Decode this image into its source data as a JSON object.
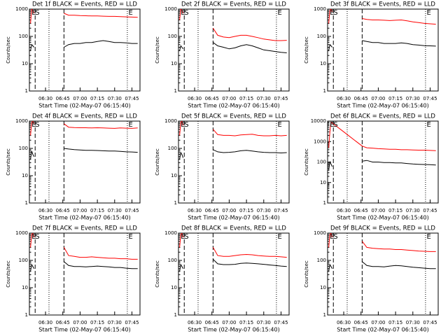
{
  "chart_data": [
    {
      "type": "line",
      "title": "Det 1f BLACK = Events, RED = LLD",
      "xlabel": "Start Time (02-May-07 06:15:40)",
      "ylabel": "Counts/sec",
      "yscale": "log",
      "xlim": [
        376,
        472
      ],
      "ylim": [
        1,
        1000
      ],
      "yticks": [
        1,
        10,
        100,
        1000
      ],
      "xticks": [
        {
          "value": 390,
          "label": "06:30"
        },
        {
          "value": 405,
          "label": "06:45"
        },
        {
          "value": 420,
          "label": "07:00"
        },
        {
          "value": 435,
          "label": "07:15"
        },
        {
          "value": 450,
          "label": "07:30"
        },
        {
          "value": 465,
          "label": "07:45"
        }
      ],
      "annotations": [
        "E",
        "S",
        "E"
      ],
      "dashed_lines": [
        381,
        406
      ],
      "dotted_lines": [
        393,
        461
      ],
      "x": [
        377,
        378,
        379,
        380,
        390,
        406,
        410,
        415,
        420,
        425,
        430,
        435,
        440,
        445,
        450,
        455,
        460,
        465,
        470
      ],
      "series": [
        {
          "color": "#ff0000",
          "values": [
            300,
            1000,
            900,
            700,
            null,
            700,
            600,
            600,
            580,
            570,
            560,
            560,
            550,
            540,
            540,
            530,
            520,
            510,
            500
          ]
        },
        {
          "color": "#000000",
          "values": [
            30,
            50,
            45,
            40,
            null,
            40,
            50,
            55,
            55,
            60,
            60,
            65,
            70,
            65,
            60,
            60,
            58,
            55,
            55
          ]
        }
      ]
    },
    {
      "type": "line",
      "title": "Det 2f BLACK = Events, RED = LLD",
      "xlabel": "Start Time (02-May-07 06:15:40)",
      "ylabel": "Counts/sec",
      "yscale": "log",
      "xlim": [
        376,
        472
      ],
      "ylim": [
        1,
        1000
      ],
      "yticks": [
        1,
        10,
        100,
        1000
      ],
      "xticks": [
        {
          "value": 390,
          "label": "06:30"
        },
        {
          "value": 405,
          "label": "06:45"
        },
        {
          "value": 420,
          "label": "07:00"
        },
        {
          "value": 435,
          "label": "07:15"
        },
        {
          "value": 450,
          "label": "07:30"
        },
        {
          "value": 465,
          "label": "07:45"
        }
      ],
      "annotations": [
        "E",
        "S",
        "E"
      ],
      "dashed_lines": [
        381,
        406
      ],
      "dotted_lines": [
        393,
        461
      ],
      "x": [
        377,
        378,
        379,
        380,
        390,
        406,
        410,
        415,
        420,
        425,
        430,
        435,
        440,
        445,
        450,
        455,
        460,
        465,
        470
      ],
      "series": [
        {
          "color": "#ff0000",
          "values": [
            400,
            1000,
            900,
            700,
            null,
            200,
            110,
            95,
            90,
            100,
            110,
            110,
            100,
            90,
            80,
            75,
            70,
            70,
            72
          ]
        },
        {
          "color": "#000000",
          "values": [
            30,
            45,
            40,
            35,
            null,
            60,
            45,
            40,
            35,
            38,
            45,
            50,
            45,
            38,
            32,
            30,
            28,
            26,
            25
          ]
        }
      ]
    },
    {
      "type": "line",
      "title": "Det 3f BLACK = Events, RED = LLD",
      "xlabel": "Start Time (02-May-07 06:15:40)",
      "ylabel": "Counts/sec",
      "yscale": "log",
      "xlim": [
        376,
        472
      ],
      "ylim": [
        1,
        1000
      ],
      "yticks": [
        1,
        10,
        100,
        1000
      ],
      "xticks": [
        {
          "value": 390,
          "label": "06:30"
        },
        {
          "value": 405,
          "label": "06:45"
        },
        {
          "value": 420,
          "label": "07:00"
        },
        {
          "value": 435,
          "label": "07:15"
        },
        {
          "value": 450,
          "label": "07:30"
        },
        {
          "value": 465,
          "label": "07:45"
        }
      ],
      "annotations": [
        "E",
        "S",
        "E"
      ],
      "dashed_lines": [
        381,
        406
      ],
      "dotted_lines": [
        393,
        461
      ],
      "x": [
        377,
        378,
        379,
        380,
        390,
        406,
        410,
        415,
        420,
        425,
        430,
        435,
        440,
        445,
        450,
        455,
        460,
        465,
        470
      ],
      "series": [
        {
          "color": "#ff0000",
          "values": [
            300,
            900,
            1000,
            800,
            null,
            450,
            420,
            400,
            400,
            390,
            380,
            390,
            400,
            370,
            340,
            320,
            300,
            290,
            280
          ]
        },
        {
          "color": "#000000",
          "values": [
            30,
            50,
            45,
            40,
            null,
            70,
            65,
            60,
            60,
            55,
            55,
            55,
            58,
            55,
            50,
            48,
            46,
            45,
            44
          ]
        }
      ]
    },
    {
      "type": "line",
      "title": "Det 4f BLACK = Events, RED = LLD",
      "xlabel": "Start Time (02-May-07 06:15:40)",
      "ylabel": "Counts/sec",
      "yscale": "log",
      "xlim": [
        376,
        472
      ],
      "ylim": [
        1,
        1000
      ],
      "yticks": [
        1,
        10,
        100,
        1000
      ],
      "xticks": [
        {
          "value": 390,
          "label": "06:30"
        },
        {
          "value": 405,
          "label": "06:45"
        },
        {
          "value": 420,
          "label": "07:00"
        },
        {
          "value": 435,
          "label": "07:15"
        },
        {
          "value": 450,
          "label": "07:30"
        },
        {
          "value": 465,
          "label": "07:45"
        }
      ],
      "annotations": [
        "E",
        "S",
        "E"
      ],
      "dashed_lines": [
        381,
        406
      ],
      "dotted_lines": [
        393,
        461
      ],
      "x": [
        377,
        378,
        379,
        380,
        390,
        406,
        410,
        415,
        420,
        425,
        430,
        435,
        440,
        445,
        450,
        455,
        460,
        465,
        470
      ],
      "series": [
        {
          "color": "#ff0000",
          "values": [
            300,
            900,
            1000,
            800,
            null,
            800,
            600,
            580,
            570,
            570,
            560,
            570,
            560,
            550,
            540,
            560,
            550,
            540,
            560
          ]
        },
        {
          "color": "#000000",
          "values": [
            40,
            80,
            60,
            50,
            null,
            100,
            95,
            90,
            88,
            85,
            85,
            84,
            82,
            80,
            80,
            78,
            75,
            74,
            72
          ]
        }
      ]
    },
    {
      "type": "line",
      "title": "Det 5f BLACK = Events, RED = LLD",
      "xlabel": "Start Time (02-May-07 06:15:40)",
      "ylabel": "Counts/sec",
      "yscale": "log",
      "xlim": [
        376,
        472
      ],
      "ylim": [
        1,
        1000
      ],
      "yticks": [
        1,
        10,
        100,
        1000
      ],
      "xticks": [
        {
          "value": 390,
          "label": "06:30"
        },
        {
          "value": 405,
          "label": "06:45"
        },
        {
          "value": 420,
          "label": "07:00"
        },
        {
          "value": 435,
          "label": "07:15"
        },
        {
          "value": 450,
          "label": "07:30"
        },
        {
          "value": 465,
          "label": "07:45"
        }
      ],
      "annotations": [
        "E",
        "S",
        "E"
      ],
      "dashed_lines": [
        381,
        406
      ],
      "dotted_lines": [
        393,
        461
      ],
      "x": [
        377,
        378,
        379,
        380,
        390,
        406,
        410,
        415,
        420,
        425,
        430,
        435,
        440,
        445,
        450,
        455,
        460,
        465,
        470
      ],
      "series": [
        {
          "color": "#ff0000",
          "values": [
            300,
            900,
            1000,
            700,
            null,
            500,
            320,
            300,
            300,
            290,
            310,
            320,
            330,
            300,
            290,
            290,
            300,
            290,
            300
          ]
        },
        {
          "color": "#000000",
          "values": [
            40,
            70,
            60,
            45,
            null,
            90,
            75,
            70,
            72,
            75,
            82,
            85,
            80,
            75,
            72,
            70,
            70,
            68,
            70
          ]
        }
      ]
    },
    {
      "type": "line",
      "title": "Det 6f BLACK = Events, RED = LLD",
      "xlabel": "Start Time (02-May-07 06:15:40)",
      "ylabel": "Counts/sec",
      "yscale": "log",
      "xlim": [
        376,
        472
      ],
      "ylim": [
        1,
        10000
      ],
      "yticks": [
        1,
        10,
        100,
        1000,
        10000
      ],
      "xticks": [
        {
          "value": 390,
          "label": "06:30"
        },
        {
          "value": 405,
          "label": "06:45"
        },
        {
          "value": 420,
          "label": "07:00"
        },
        {
          "value": 435,
          "label": "07:15"
        },
        {
          "value": 450,
          "label": "07:30"
        },
        {
          "value": 465,
          "label": "07:45"
        }
      ],
      "annotations": [
        "E",
        "S",
        "E"
      ],
      "dashed_lines": [
        381,
        406
      ],
      "dotted_lines": [
        393,
        461
      ],
      "x": [
        377,
        378,
        379,
        380,
        390,
        406,
        410,
        415,
        420,
        425,
        430,
        435,
        440,
        445,
        450,
        455,
        460,
        465,
        470
      ],
      "series": [
        {
          "color": "#ff0000",
          "values": [
            500,
            3000,
            9000,
            8000,
            3000,
            600,
            500,
            480,
            450,
            440,
            420,
            420,
            400,
            400,
            390,
            380,
            380,
            370,
            360
          ]
        },
        {
          "color": "#000000",
          "values": [
            40,
            100,
            80,
            60,
            null,
            110,
            120,
            100,
            100,
            95,
            95,
            90,
            90,
            85,
            80,
            78,
            76,
            75,
            72
          ]
        }
      ]
    },
    {
      "type": "line",
      "title": "Det 7f BLACK = Events, RED = LLD",
      "xlabel": "Start Time (02-May-07 06:15:40)",
      "ylabel": "Counts/sec",
      "yscale": "log",
      "xlim": [
        376,
        472
      ],
      "ylim": [
        1,
        1000
      ],
      "yticks": [
        1,
        10,
        100,
        1000
      ],
      "xticks": [
        {
          "value": 390,
          "label": "06:30"
        },
        {
          "value": 405,
          "label": "06:45"
        },
        {
          "value": 420,
          "label": "07:00"
        },
        {
          "value": 435,
          "label": "07:15"
        },
        {
          "value": 450,
          "label": "07:30"
        },
        {
          "value": 465,
          "label": "07:45"
        }
      ],
      "annotations": [
        "E",
        "S",
        "E"
      ],
      "dashed_lines": [
        381,
        406
      ],
      "dotted_lines": [
        393,
        461
      ],
      "x": [
        377,
        378,
        379,
        380,
        390,
        406,
        410,
        415,
        420,
        425,
        430,
        435,
        440,
        445,
        450,
        455,
        460,
        465,
        470
      ],
      "series": [
        {
          "color": "#ff0000",
          "values": [
            300,
            900,
            1000,
            700,
            null,
            300,
            150,
            140,
            130,
            130,
            135,
            130,
            125,
            120,
            120,
            115,
            115,
            110,
            110
          ]
        },
        {
          "color": "#000000",
          "values": [
            40,
            70,
            60,
            50,
            null,
            90,
            65,
            60,
            60,
            58,
            60,
            62,
            60,
            58,
            55,
            55,
            52,
            50,
            50
          ]
        }
      ]
    },
    {
      "type": "line",
      "title": "Det 8f BLACK = Events, RED = LLD",
      "xlabel": "Start Time (02-May-07 06:15:40)",
      "ylabel": "Counts/sec",
      "yscale": "log",
      "xlim": [
        376,
        472
      ],
      "ylim": [
        1,
        1000
      ],
      "yticks": [
        1,
        10,
        100,
        1000
      ],
      "xticks": [
        {
          "value": 390,
          "label": "06:30"
        },
        {
          "value": 405,
          "label": "06:45"
        },
        {
          "value": 420,
          "label": "07:00"
        },
        {
          "value": 435,
          "label": "07:15"
        },
        {
          "value": 450,
          "label": "07:30"
        },
        {
          "value": 465,
          "label": "07:45"
        }
      ],
      "annotations": [
        "E",
        "S",
        "E"
      ],
      "dashed_lines": [
        381,
        406
      ],
      "dotted_lines": [
        393,
        461
      ],
      "x": [
        377,
        378,
        379,
        380,
        390,
        406,
        410,
        415,
        420,
        425,
        430,
        435,
        440,
        445,
        450,
        455,
        460,
        465,
        470
      ],
      "series": [
        {
          "color": "#ff0000",
          "values": [
            300,
            900,
            1000,
            700,
            null,
            300,
            150,
            140,
            140,
            150,
            160,
            165,
            160,
            150,
            145,
            140,
            140,
            135,
            130
          ]
        },
        {
          "color": "#000000",
          "values": [
            40,
            70,
            60,
            50,
            null,
            110,
            75,
            70,
            70,
            72,
            78,
            80,
            78,
            75,
            72,
            68,
            65,
            62,
            60
          ]
        }
      ]
    },
    {
      "type": "line",
      "title": "Det 9f BLACK = Events, RED = LLD",
      "xlabel": "Start Time (02-May-07 06:15:40)",
      "ylabel": "Counts/sec",
      "yscale": "log",
      "xlim": [
        376,
        472
      ],
      "ylim": [
        1,
        1000
      ],
      "yticks": [
        1,
        10,
        100,
        1000
      ],
      "xticks": [
        {
          "value": 390,
          "label": "06:30"
        },
        {
          "value": 405,
          "label": "06:45"
        },
        {
          "value": 420,
          "label": "07:00"
        },
        {
          "value": 435,
          "label": "07:15"
        },
        {
          "value": 450,
          "label": "07:30"
        },
        {
          "value": 465,
          "label": "07:45"
        }
      ],
      "annotations": [
        "E",
        "S",
        "E"
      ],
      "dashed_lines": [
        381,
        406
      ],
      "dotted_lines": [
        393,
        461
      ],
      "x": [
        377,
        378,
        379,
        380,
        390,
        406,
        410,
        415,
        420,
        425,
        430,
        435,
        440,
        445,
        450,
        455,
        460,
        465,
        470
      ],
      "series": [
        {
          "color": "#ff0000",
          "values": [
            300,
            900,
            1000,
            700,
            null,
            500,
            300,
            280,
            270,
            260,
            260,
            250,
            250,
            240,
            230,
            220,
            215,
            210,
            210
          ]
        },
        {
          "color": "#000000",
          "values": [
            40,
            70,
            60,
            50,
            null,
            90,
            65,
            60,
            60,
            58,
            62,
            65,
            63,
            60,
            56,
            54,
            52,
            50,
            50
          ]
        }
      ]
    }
  ]
}
